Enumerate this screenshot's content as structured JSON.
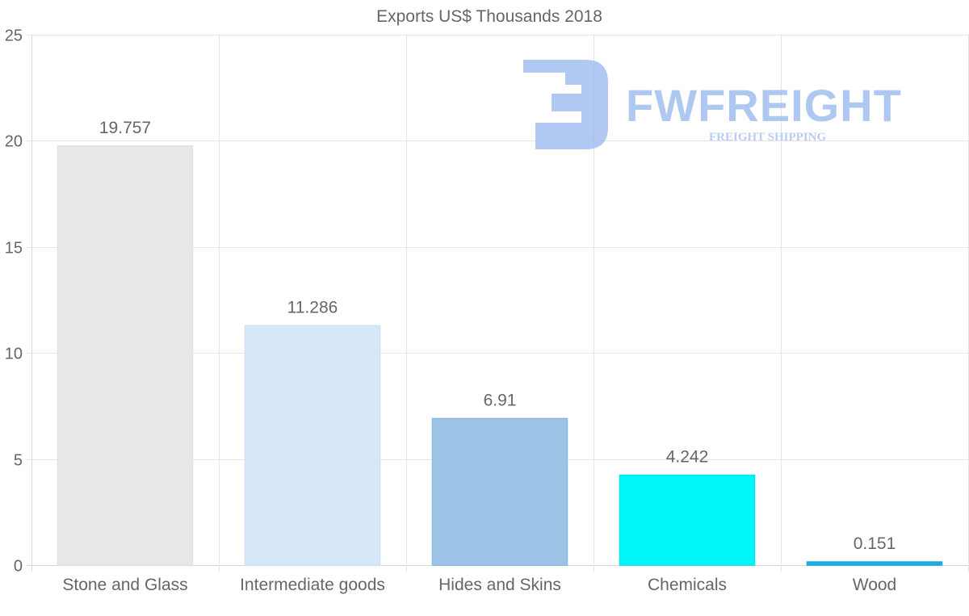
{
  "chart_data": {
    "type": "bar",
    "title": "Exports US$ Thousands 2018",
    "categories": [
      "Stone and Glass",
      "Intermediate goods",
      "Hides and Skins",
      "Chemicals",
      "Wood"
    ],
    "values": [
      19.757,
      11.286,
      6.91,
      4.242,
      0.151
    ],
    "value_labels": [
      "19.757",
      "11.286",
      "6.91",
      "4.242",
      "0.151"
    ],
    "colors": [
      "#e8e8e8",
      "#d6e7f8",
      "#9cc3e6",
      "#00f5f7",
      "#1ab0e6"
    ],
    "border_colors": [
      "#e2e2e2",
      "#cfe0f3",
      "#8fb8df",
      "#00e6ee",
      "#17a6dd"
    ],
    "ylim": [
      0,
      25
    ],
    "y_ticks": [
      0,
      5,
      10,
      15,
      20,
      25
    ],
    "xlabel": "",
    "ylabel": "",
    "grid": true,
    "legend": "none"
  },
  "watermark": {
    "brand": "FWFREIGHT",
    "tagline": "FREIGHT SHIPPING",
    "icon": "fwfreight-logo-icon"
  }
}
